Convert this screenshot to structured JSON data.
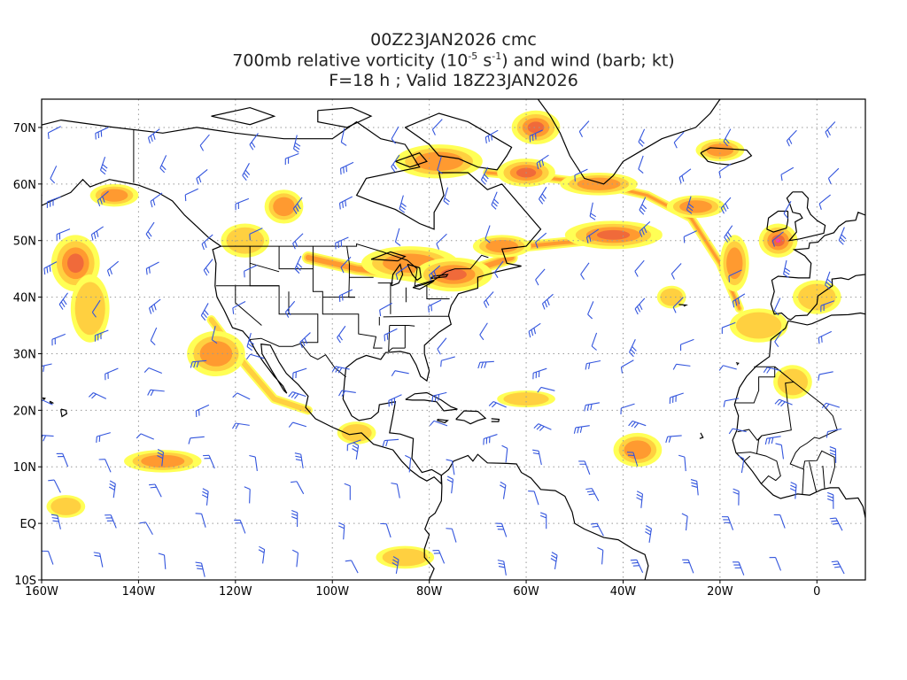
{
  "title": {
    "line1": "00Z23JAN2026 cmc",
    "line2_a": "700mb relative vorticity (10",
    "line2_sup1": "-5",
    "line2_b": " s",
    "line2_sup2": "-1",
    "line2_c": ") and wind (barb; kt)",
    "line3": "F=18 h ; Valid 18Z23JAN2026"
  },
  "axes": {
    "lon_labels": [
      "160W",
      "140W",
      "120W",
      "100W",
      "80W",
      "60W",
      "40W",
      "20W",
      "0"
    ],
    "lon_values": [
      -160,
      -140,
      -120,
      -100,
      -80,
      -60,
      -40,
      -20,
      0
    ],
    "lat_labels": [
      "70N",
      "60N",
      "50N",
      "40N",
      "30N",
      "20N",
      "10N",
      "EQ",
      "10S"
    ],
    "lat_values": [
      70,
      60,
      50,
      40,
      30,
      20,
      10,
      0,
      -10
    ]
  },
  "extent": {
    "lon_min": -160,
    "lon_max": 10,
    "lat_min": -10,
    "lat_max": 75
  },
  "colors": {
    "light": "#ffff55",
    "mid": "#ffd040",
    "orange": "#ff9a30",
    "strong": "#f06a3a",
    "peak": "#ff33aa",
    "barb": "#3355dd",
    "coast": "#000000",
    "grid": "#999999"
  },
  "vorticity_blobs": [
    {
      "lon": -153,
      "lat": 46,
      "rx": 5,
      "ry": 5,
      "level": 3
    },
    {
      "lon": -150,
      "lat": 38,
      "rx": 4,
      "ry": 6,
      "level": 1
    },
    {
      "lon": -145,
      "lat": 58,
      "rx": 5,
      "ry": 2,
      "level": 2
    },
    {
      "lon": -124,
      "lat": 30,
      "rx": 6,
      "ry": 4,
      "level": 2
    },
    {
      "lon": -118,
      "lat": 50,
      "rx": 5,
      "ry": 3,
      "level": 1
    },
    {
      "lon": -110,
      "lat": 56,
      "rx": 4,
      "ry": 3,
      "level": 2
    },
    {
      "lon": -84,
      "lat": 46,
      "rx": 10,
      "ry": 3,
      "level": 2
    },
    {
      "lon": -75,
      "lat": 44,
      "rx": 8,
      "ry": 3,
      "level": 3
    },
    {
      "lon": -65,
      "lat": 49,
      "rx": 6,
      "ry": 2,
      "level": 2
    },
    {
      "lon": -78,
      "lat": 64,
      "rx": 9,
      "ry": 3,
      "level": 2
    },
    {
      "lon": -60,
      "lat": 62,
      "rx": 6,
      "ry": 2.5,
      "level": 3
    },
    {
      "lon": -45,
      "lat": 60,
      "rx": 8,
      "ry": 2,
      "level": 2
    },
    {
      "lon": -42,
      "lat": 51,
      "rx": 10,
      "ry": 2.5,
      "level": 3
    },
    {
      "lon": -58,
      "lat": 70,
      "rx": 5,
      "ry": 3,
      "level": 3
    },
    {
      "lon": -25,
      "lat": 56,
      "rx": 6,
      "ry": 2,
      "level": 2
    },
    {
      "lon": -17,
      "lat": 46,
      "rx": 3,
      "ry": 5,
      "level": 2
    },
    {
      "lon": -8,
      "lat": 50,
      "rx": 4,
      "ry": 3,
      "level": 4
    },
    {
      "lon": 0,
      "lat": 40,
      "rx": 5,
      "ry": 3,
      "level": 1
    },
    {
      "lon": -12,
      "lat": 35,
      "rx": 6,
      "ry": 3,
      "level": 1
    },
    {
      "lon": -37,
      "lat": 13,
      "rx": 5,
      "ry": 3,
      "level": 2
    },
    {
      "lon": -135,
      "lat": 11,
      "rx": 8,
      "ry": 2,
      "level": 2
    },
    {
      "lon": -85,
      "lat": -6,
      "rx": 6,
      "ry": 2,
      "level": 1
    },
    {
      "lon": -155,
      "lat": 3,
      "rx": 4,
      "ry": 2,
      "level": 1
    },
    {
      "lon": -95,
      "lat": 16,
      "rx": 4,
      "ry": 2,
      "level": 1
    },
    {
      "lon": -60,
      "lat": 22,
      "rx": 6,
      "ry": 1.5,
      "level": 1
    },
    {
      "lon": -20,
      "lat": 66,
      "rx": 5,
      "ry": 2,
      "level": 2
    },
    {
      "lon": -30,
      "lat": 40,
      "rx": 3,
      "ry": 2,
      "level": 1
    },
    {
      "lon": -5,
      "lat": 25,
      "rx": 4,
      "ry": 3,
      "level": 1
    }
  ],
  "vorticity_bands": [
    {
      "points": [
        [
          -105,
          47
        ],
        [
          -95,
          45
        ],
        [
          -85,
          44
        ],
        [
          -78,
          43
        ],
        [
          -70,
          45
        ],
        [
          -63,
          47
        ]
      ],
      "width": 14,
      "level": 2
    },
    {
      "points": [
        [
          -68,
          62
        ],
        [
          -55,
          61
        ],
        [
          -45,
          60
        ],
        [
          -35,
          58
        ],
        [
          -26,
          54
        ],
        [
          -20,
          46
        ],
        [
          -16,
          38
        ]
      ],
      "width": 10,
      "level": 2
    },
    {
      "points": [
        [
          -60,
          49
        ],
        [
          -48,
          50
        ],
        [
          -40,
          51
        ],
        [
          -33,
          51
        ]
      ],
      "width": 12,
      "level": 2
    },
    {
      "points": [
        [
          -125,
          36
        ],
        [
          -118,
          28
        ],
        [
          -112,
          22
        ],
        [
          -105,
          20
        ]
      ],
      "width": 10,
      "level": 1
    }
  ],
  "barbs_seed": 7
}
